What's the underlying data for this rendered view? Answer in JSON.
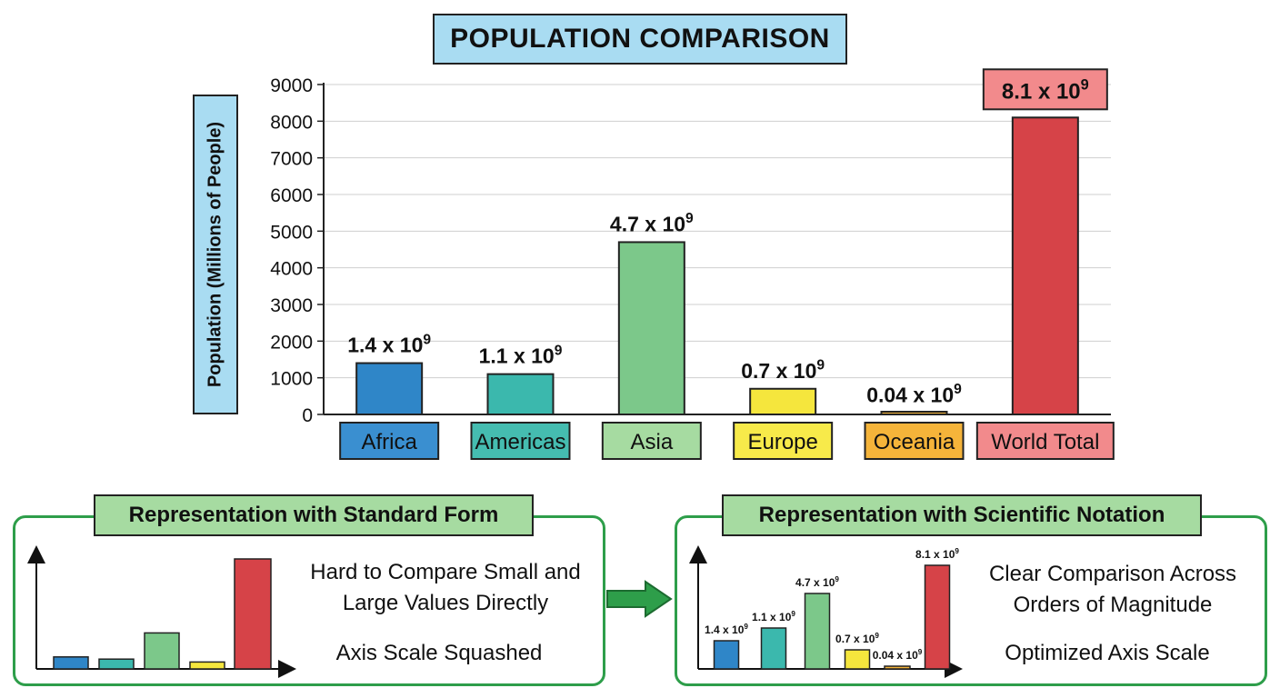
{
  "chart_data": {
    "type": "bar",
    "title": "POPULATION COMPARISON",
    "ylabel": "Population (Millions of People)",
    "ylim": [
      0,
      9000
    ],
    "yticks": [
      0,
      1000,
      2000,
      3000,
      4000,
      5000,
      6000,
      7000,
      8000,
      9000
    ],
    "categories": [
      "Africa",
      "Americas",
      "Asia",
      "Europe",
      "Oceania",
      "World Total"
    ],
    "values": [
      1400,
      1100,
      4700,
      700,
      40,
      8100
    ],
    "data_labels": [
      {
        "base": "1.4 x 10",
        "exp": "9"
      },
      {
        "base": "1.1 x 10",
        "exp": "9"
      },
      {
        "base": "4.7 x 10",
        "exp": "9"
      },
      {
        "base": "0.7 x 10",
        "exp": "9"
      },
      {
        "base": "0.04 x 10",
        "exp": "9"
      },
      {
        "base": "8.1 x 10",
        "exp": "9"
      }
    ],
    "grid": true,
    "colors": [
      "#2f86c8",
      "#3bb8ad",
      "#7cc88a",
      "#f5e63d",
      "#f5b43a",
      "#d64348"
    ],
    "label_colors": [
      "#3a8fd0",
      "#45bcb0",
      "#a6dba1",
      "#f7ea4a",
      "#f5b43a",
      "#f28a8c"
    ]
  },
  "panels": {
    "left": {
      "title": "Representation with Standard Form",
      "line1": "Hard to Compare Small and",
      "line2": "Large Values Directly",
      "line3": "Axis Scale Squashed"
    },
    "right": {
      "title": "Representation with Scientific Notation",
      "line1": "Clear Comparison Across",
      "line2": "Orders of Magnitude",
      "line3": "Optimized Axis Scale"
    }
  },
  "colors": {
    "title_bg": "#a9dcf2",
    "panel_border": "#2e9e4a",
    "panel_title_bg": "#a6dba1",
    "arrow": "#2e9e4a"
  }
}
